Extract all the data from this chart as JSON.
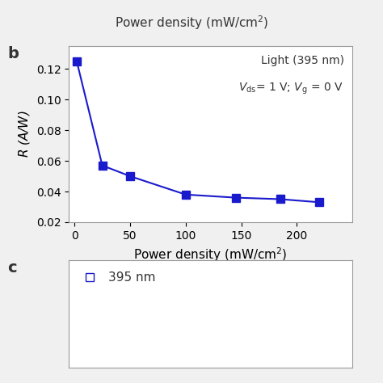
{
  "x": [
    2,
    25,
    50,
    100,
    145,
    185,
    220
  ],
  "y": [
    0.125,
    0.057,
    0.05,
    0.038,
    0.036,
    0.035,
    0.033
  ],
  "color": "#1a1acd",
  "marker": "s",
  "markersize": 7,
  "linewidth": 1.5,
  "xlabel": "Power density (mW/cm$^2$)",
  "ylabel": "$R$ (A/W)",
  "xlim": [
    -5,
    250
  ],
  "ylim": [
    0.02,
    0.135
  ],
  "yticks": [
    0.02,
    0.04,
    0.06,
    0.08,
    0.1,
    0.12
  ],
  "xticks": [
    0,
    50,
    100,
    150,
    200
  ],
  "label_b": "b",
  "annotation_line1": "Light (395 nm)",
  "annotation_line2": "$V_{\\mathrm{ds}}$= 1 V; $V_{\\mathrm{g}}$ = 0 V",
  "top_xlabel": "Power density (mW/cm$^2$)",
  "bg_color": "#f0f0f0",
  "panel_bg": "#ffffff",
  "label_c": "c",
  "legend_c_label": "395 nm"
}
